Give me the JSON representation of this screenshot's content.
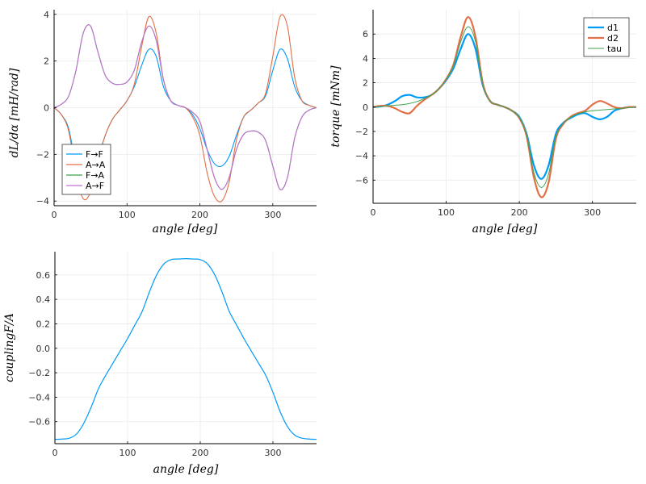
{
  "chart_data": [
    {
      "type": "line",
      "xlabel": "angle [deg]",
      "ylabel": "dL/dα [mH/rad]",
      "xlim": [
        0,
        360
      ],
      "ylim": [
        -4.2,
        4.2
      ],
      "xticks": [
        0,
        100,
        200,
        300
      ],
      "yticks": [
        -4,
        -2,
        0,
        2,
        4
      ],
      "grid": true,
      "legend": "bottom-left",
      "series": [
        {
          "name": "F→F",
          "color": "#009af9",
          "x": [
            0,
            10,
            20,
            30,
            40,
            50,
            60,
            70,
            80,
            90,
            100,
            110,
            120,
            130,
            140,
            150,
            160,
            170,
            180,
            190,
            200,
            210,
            220,
            230,
            240,
            250,
            260,
            270,
            280,
            290,
            300,
            310,
            320,
            330,
            340,
            350,
            360
          ],
          "values": [
            0,
            -0.3,
            -0.9,
            -2.5,
            -3.5,
            -3.3,
            -2.2,
            -1.2,
            -0.5,
            -0.1,
            0.3,
            0.9,
            1.8,
            2.5,
            2.2,
            0.9,
            0.3,
            0.1,
            0,
            -0.3,
            -0.9,
            -1.8,
            -2.4,
            -2.5,
            -2.1,
            -1.2,
            -0.4,
            -0.1,
            0.2,
            0.5,
            1.6,
            2.5,
            2.1,
            0.9,
            0.3,
            0.1,
            0
          ]
        },
        {
          "name": "A→A",
          "color": "#e26f46",
          "x": [
            0,
            10,
            20,
            30,
            40,
            50,
            60,
            70,
            80,
            90,
            100,
            110,
            120,
            130,
            140,
            150,
            160,
            170,
            180,
            190,
            200,
            210,
            220,
            230,
            240,
            250,
            260,
            270,
            280,
            290,
            300,
            310,
            320,
            330,
            340,
            350,
            360
          ],
          "values": [
            0,
            -0.3,
            -1.0,
            -2.8,
            -3.9,
            -3.6,
            -2.3,
            -1.2,
            -0.5,
            -0.1,
            0.3,
            1.0,
            2.6,
            3.9,
            3.2,
            1.2,
            0.3,
            0.1,
            0,
            -0.4,
            -1.2,
            -2.8,
            -3.8,
            -4.0,
            -3.2,
            -1.4,
            -0.4,
            -0.1,
            0.2,
            0.6,
            2.2,
            3.9,
            3.5,
            1.3,
            0.3,
            0.1,
            0
          ]
        },
        {
          "name": "F→A",
          "color": "#3da44d",
          "x": [
            0,
            10,
            20,
            30,
            40,
            50,
            60,
            70,
            80,
            90,
            100,
            110,
            120,
            130,
            140,
            150,
            160,
            170,
            180,
            190,
            200,
            210,
            220,
            230,
            240,
            250,
            260,
            270,
            280,
            290,
            300,
            310,
            320,
            330,
            340,
            350,
            360
          ],
          "values": [
            0,
            0.15,
            0.5,
            1.6,
            3.2,
            3.5,
            2.4,
            1.4,
            1.05,
            1.0,
            1.1,
            1.6,
            2.8,
            3.5,
            2.9,
            1.2,
            0.3,
            0.1,
            0,
            -0.2,
            -0.6,
            -1.8,
            -3.0,
            -3.5,
            -3.0,
            -1.8,
            -1.15,
            -1.0,
            -1.05,
            -1.4,
            -2.5,
            -3.5,
            -3.0,
            -1.3,
            -0.4,
            -0.1,
            0
          ]
        },
        {
          "name": "A→F",
          "color": "#c271d2",
          "x": [
            0,
            10,
            20,
            30,
            40,
            50,
            60,
            70,
            80,
            90,
            100,
            110,
            120,
            130,
            140,
            150,
            160,
            170,
            180,
            190,
            200,
            210,
            220,
            230,
            240,
            250,
            260,
            270,
            280,
            290,
            300,
            310,
            320,
            330,
            340,
            350,
            360
          ],
          "values": [
            0,
            0.15,
            0.5,
            1.6,
            3.2,
            3.5,
            2.4,
            1.4,
            1.05,
            1.0,
            1.1,
            1.6,
            2.8,
            3.5,
            2.9,
            1.2,
            0.3,
            0.1,
            0,
            -0.2,
            -0.6,
            -1.8,
            -3.0,
            -3.5,
            -3.0,
            -1.8,
            -1.15,
            -1.0,
            -1.05,
            -1.4,
            -2.5,
            -3.5,
            -3.0,
            -1.3,
            -0.4,
            -0.1,
            0
          ]
        }
      ]
    },
    {
      "type": "line",
      "xlabel": "angle [deg]",
      "ylabel": "torque [mNm]",
      "xlim": [
        0,
        360
      ],
      "ylim": [
        -7.9,
        8.0
      ],
      "xticks": [
        0,
        100,
        200,
        300
      ],
      "yticks": [
        -6,
        -4,
        -2,
        0,
        2,
        4,
        6
      ],
      "grid": true,
      "legend": "top-right",
      "series": [
        {
          "name": "d1",
          "color": "#009af9",
          "x": [
            0,
            10,
            20,
            30,
            40,
            50,
            60,
            70,
            80,
            90,
            100,
            110,
            120,
            130,
            140,
            150,
            160,
            170,
            180,
            190,
            200,
            210,
            220,
            230,
            240,
            250,
            260,
            270,
            280,
            290,
            300,
            310,
            320,
            330,
            340,
            350,
            360
          ],
          "values": [
            0,
            0.05,
            0.2,
            0.5,
            0.9,
            1.0,
            0.8,
            0.8,
            1.0,
            1.5,
            2.2,
            3.2,
            4.8,
            6.0,
            4.8,
            1.8,
            0.5,
            0.2,
            0,
            -0.3,
            -0.8,
            -2.2,
            -4.8,
            -5.9,
            -4.8,
            -2.2,
            -1.3,
            -0.9,
            -0.6,
            -0.5,
            -0.8,
            -1.0,
            -0.8,
            -0.3,
            -0.1,
            0,
            0
          ]
        },
        {
          "name": "d2",
          "color": "#e26f46",
          "x": [
            0,
            10,
            20,
            30,
            40,
            50,
            60,
            70,
            80,
            90,
            100,
            110,
            120,
            130,
            140,
            150,
            160,
            170,
            180,
            190,
            200,
            210,
            220,
            230,
            240,
            250,
            260,
            270,
            280,
            290,
            300,
            310,
            320,
            330,
            340,
            350,
            360
          ],
          "values": [
            0,
            0.1,
            0.1,
            -0.1,
            -0.4,
            -0.5,
            0.1,
            0.6,
            1.0,
            1.5,
            2.3,
            3.5,
            5.8,
            7.4,
            5.8,
            2.0,
            0.5,
            0.2,
            0,
            -0.3,
            -0.9,
            -2.4,
            -5.8,
            -7.4,
            -6.2,
            -2.6,
            -1.4,
            -0.8,
            -0.5,
            -0.3,
            0.2,
            0.5,
            0.3,
            0,
            -0.1,
            0,
            0
          ]
        },
        {
          "name": "tau",
          "color": "#3da44d",
          "x": [
            0,
            10,
            20,
            30,
            40,
            50,
            60,
            70,
            80,
            90,
            100,
            110,
            120,
            130,
            140,
            150,
            160,
            170,
            180,
            190,
            200,
            210,
            220,
            230,
            240,
            250,
            260,
            270,
            280,
            290,
            300,
            310,
            320,
            330,
            340,
            350,
            360
          ],
          "values": [
            0,
            0.05,
            0.1,
            0.15,
            0.2,
            0.3,
            0.45,
            0.7,
            1.0,
            1.5,
            2.3,
            3.4,
            5.4,
            6.6,
            5.4,
            1.9,
            0.5,
            0.2,
            0,
            -0.3,
            -0.85,
            -2.3,
            -5.4,
            -6.6,
            -5.5,
            -2.4,
            -1.35,
            -0.85,
            -0.55,
            -0.4,
            -0.3,
            -0.25,
            -0.2,
            -0.15,
            -0.1,
            -0.05,
            0
          ]
        }
      ]
    },
    {
      "type": "line",
      "xlabel": "angle [deg]",
      "ylabel": "couplingF/A",
      "xlim": [
        0,
        360
      ],
      "ylim": [
        -0.78,
        0.79
      ],
      "xticks": [
        0,
        100,
        200,
        300
      ],
      "yticks": [
        -0.6,
        -0.4,
        -0.2,
        0.0,
        0.2,
        0.4,
        0.6
      ],
      "grid": true,
      "legend": "none",
      "series": [
        {
          "name": "",
          "color": "#009af9",
          "x": [
            0,
            10,
            20,
            30,
            40,
            50,
            60,
            70,
            80,
            90,
            100,
            110,
            120,
            130,
            140,
            150,
            160,
            170,
            180,
            190,
            200,
            210,
            220,
            230,
            240,
            250,
            260,
            270,
            280,
            290,
            300,
            310,
            320,
            330,
            340,
            350,
            360
          ],
          "values": [
            -0.745,
            -0.742,
            -0.735,
            -0.7,
            -0.61,
            -0.48,
            -0.33,
            -0.22,
            -0.12,
            -0.02,
            0.08,
            0.19,
            0.3,
            0.46,
            0.6,
            0.69,
            0.725,
            0.73,
            0.733,
            0.73,
            0.725,
            0.69,
            0.6,
            0.46,
            0.3,
            0.19,
            0.08,
            -0.02,
            -0.12,
            -0.22,
            -0.36,
            -0.52,
            -0.64,
            -0.71,
            -0.735,
            -0.742,
            -0.745
          ]
        }
      ]
    }
  ],
  "ticklabels": {
    "p1x": [
      "0",
      "100",
      "200",
      "300"
    ],
    "p1y": [
      "−4",
      "−2",
      "0",
      "2",
      "4"
    ],
    "p2x": [
      "0",
      "100",
      "200",
      "300"
    ],
    "p2y": [
      "−6",
      "−4",
      "−2",
      "0",
      "2",
      "4",
      "6"
    ],
    "p3x": [
      "0",
      "100",
      "200",
      "300"
    ],
    "p3y": [
      "−0.6",
      "−0.4",
      "−0.2",
      "0.0",
      "0.2",
      "0.4",
      "0.6"
    ]
  }
}
